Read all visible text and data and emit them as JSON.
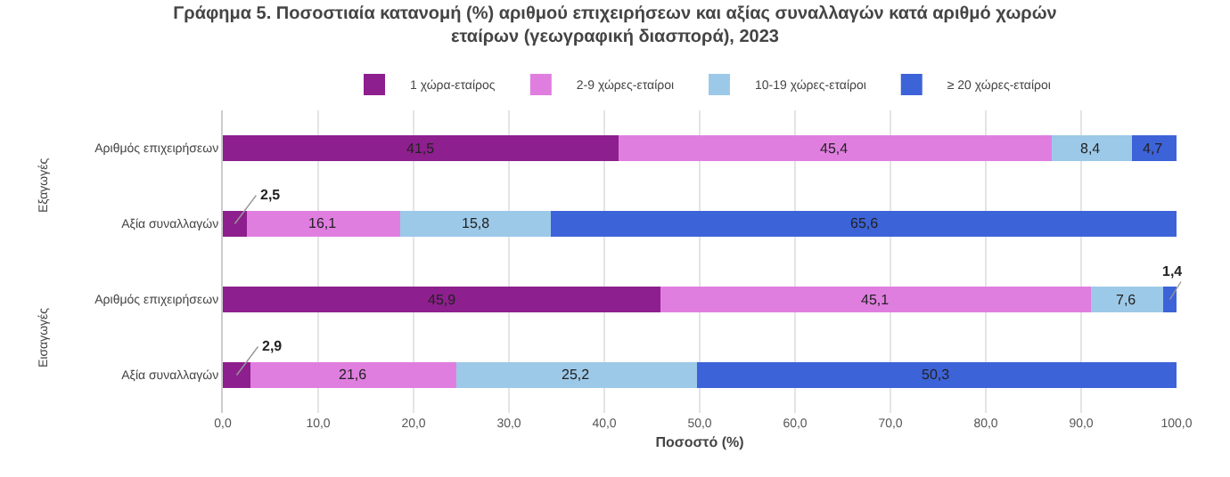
{
  "chart_data": {
    "type": "bar",
    "orientation": "horizontal",
    "stacked": true,
    "title": "Γράφημα 5. Ποσοστιαία κατανομή (%) αριθμού επιχειρήσεων και αξίας συναλλαγών κατά αριθμό χωρών εταίρων (γεωγραφική διασπορά), 2023",
    "xlabel": "Ποσοστό (%)",
    "categories": [
      "Αριθμός επιχειρήσεων",
      "Αξία συναλλαγών",
      "Αριθμός επιχειρήσεων",
      "Αξία συναλλαγών"
    ],
    "annotations": [
      "Εξαγωγές",
      "Εισαγωγές"
    ],
    "series": [
      {
        "name": "1 χώρα-εταίρος",
        "color": "#8e1f8e",
        "values": [
          41.5,
          2.5,
          45.9,
          2.9
        ],
        "value_labels": [
          "41,5",
          "2,5",
          "45,9",
          "2,9"
        ]
      },
      {
        "name": "2-9 χώρες-εταίροι",
        "color": "#e07ee0",
        "values": [
          45.4,
          16.1,
          45.1,
          21.6
        ],
        "value_labels": [
          "45,4",
          "16,1",
          "45,1",
          "21,6"
        ]
      },
      {
        "name": "10-19 χώρες-εταίροι",
        "color": "#9dc9e8",
        "values": [
          8.4,
          15.8,
          7.6,
          25.2
        ],
        "value_labels": [
          "8,4",
          "15,8",
          "7,6",
          "25,2"
        ]
      },
      {
        "name": "≥ 20 χώρες-εταίροι",
        "color": "#3d63d8",
        "values": [
          4.7,
          65.6,
          1.4,
          50.3
        ],
        "value_labels": [
          "4,7",
          "65,6",
          "1,4",
          "50,3"
        ]
      }
    ],
    "xlim": [
      0,
      100
    ],
    "xticks": [
      {
        "value": 0,
        "label": "0,0"
      },
      {
        "value": 10,
        "label": "10,0"
      },
      {
        "value": 20,
        "label": "20,0"
      },
      {
        "value": 30,
        "label": "30,0"
      },
      {
        "value": 40,
        "label": "40,0"
      },
      {
        "value": 50,
        "label": "50,0"
      },
      {
        "value": 60,
        "label": "60,0"
      },
      {
        "value": 70,
        "label": "70,0"
      },
      {
        "value": 80,
        "label": "80,0"
      },
      {
        "value": 90,
        "label": "90,0"
      },
      {
        "value": 100,
        "label": "100,0"
      }
    ],
    "grid": "x",
    "legend": "top"
  }
}
